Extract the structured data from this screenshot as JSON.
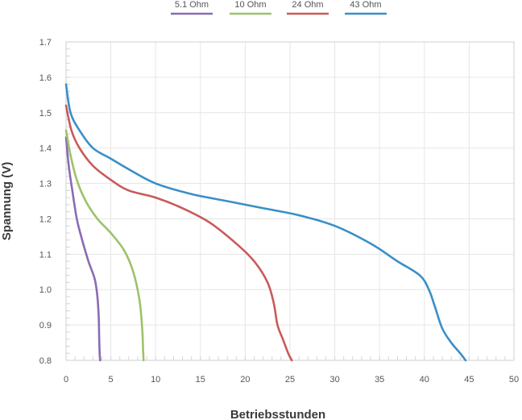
{
  "chart_data": {
    "type": "line",
    "title": "",
    "xlabel": "Betriebsstunden",
    "ylabel": "Spannung (V)",
    "xlim": [
      0,
      50
    ],
    "ylim": [
      0.8,
      1.7
    ],
    "xticks": [
      0,
      5,
      10,
      15,
      20,
      25,
      30,
      35,
      40,
      45,
      50
    ],
    "yticks": [
      0.8,
      0.9,
      1.0,
      1.1,
      1.2,
      1.3,
      1.4,
      1.5,
      1.6,
      1.7
    ],
    "xtick_labels": [
      "0",
      "5",
      "10",
      "15",
      "20",
      "25",
      "30",
      "35",
      "40",
      "45",
      "50"
    ],
    "ytick_labels": [
      "0.8",
      "0.9",
      "1.0",
      "1.1",
      "1.2",
      "1.3",
      "1.4",
      "1.5",
      "1.6",
      "1.7"
    ],
    "grid": true,
    "legend_position": "top-center",
    "series": [
      {
        "name": "5.1 Ohm",
        "color": "#8a6bb5",
        "x": [
          0,
          0.3,
          0.7,
          1.2,
          1.8,
          2.5,
          3.2,
          3.5,
          3.65,
          3.7,
          3.75,
          3.8
        ],
        "y": [
          1.43,
          1.35,
          1.28,
          1.2,
          1.14,
          1.08,
          1.03,
          0.98,
          0.92,
          0.86,
          0.82,
          0.8
        ]
      },
      {
        "name": "10 Ohm",
        "color": "#9dc26a",
        "x": [
          0,
          0.5,
          1.2,
          2.2,
          3.5,
          5.0,
          6.5,
          7.5,
          8.2,
          8.5,
          8.6,
          8.65
        ],
        "y": [
          1.45,
          1.38,
          1.31,
          1.25,
          1.2,
          1.16,
          1.11,
          1.05,
          0.97,
          0.89,
          0.83,
          0.8
        ]
      },
      {
        "name": "24 Ohm",
        "color": "#c95a5a",
        "x": [
          0,
          0.6,
          1.5,
          3,
          5,
          7,
          10,
          13,
          16,
          19,
          21,
          22.5,
          23.2,
          23.6,
          24.2,
          24.8,
          25.2
        ],
        "y": [
          1.52,
          1.45,
          1.4,
          1.35,
          1.31,
          1.28,
          1.26,
          1.23,
          1.19,
          1.13,
          1.08,
          1.02,
          0.96,
          0.9,
          0.86,
          0.82,
          0.8
        ]
      },
      {
        "name": "43 Ohm",
        "color": "#3a8fc8",
        "x": [
          0,
          0.5,
          1.5,
          3,
          5,
          7,
          10,
          14,
          18,
          22,
          26,
          30,
          34,
          37,
          39.5,
          40.5,
          41.2,
          42,
          43,
          44,
          44.6
        ],
        "y": [
          1.58,
          1.5,
          1.45,
          1.4,
          1.37,
          1.34,
          1.3,
          1.27,
          1.25,
          1.23,
          1.21,
          1.18,
          1.13,
          1.08,
          1.04,
          1.0,
          0.95,
          0.89,
          0.85,
          0.82,
          0.8
        ]
      }
    ]
  }
}
